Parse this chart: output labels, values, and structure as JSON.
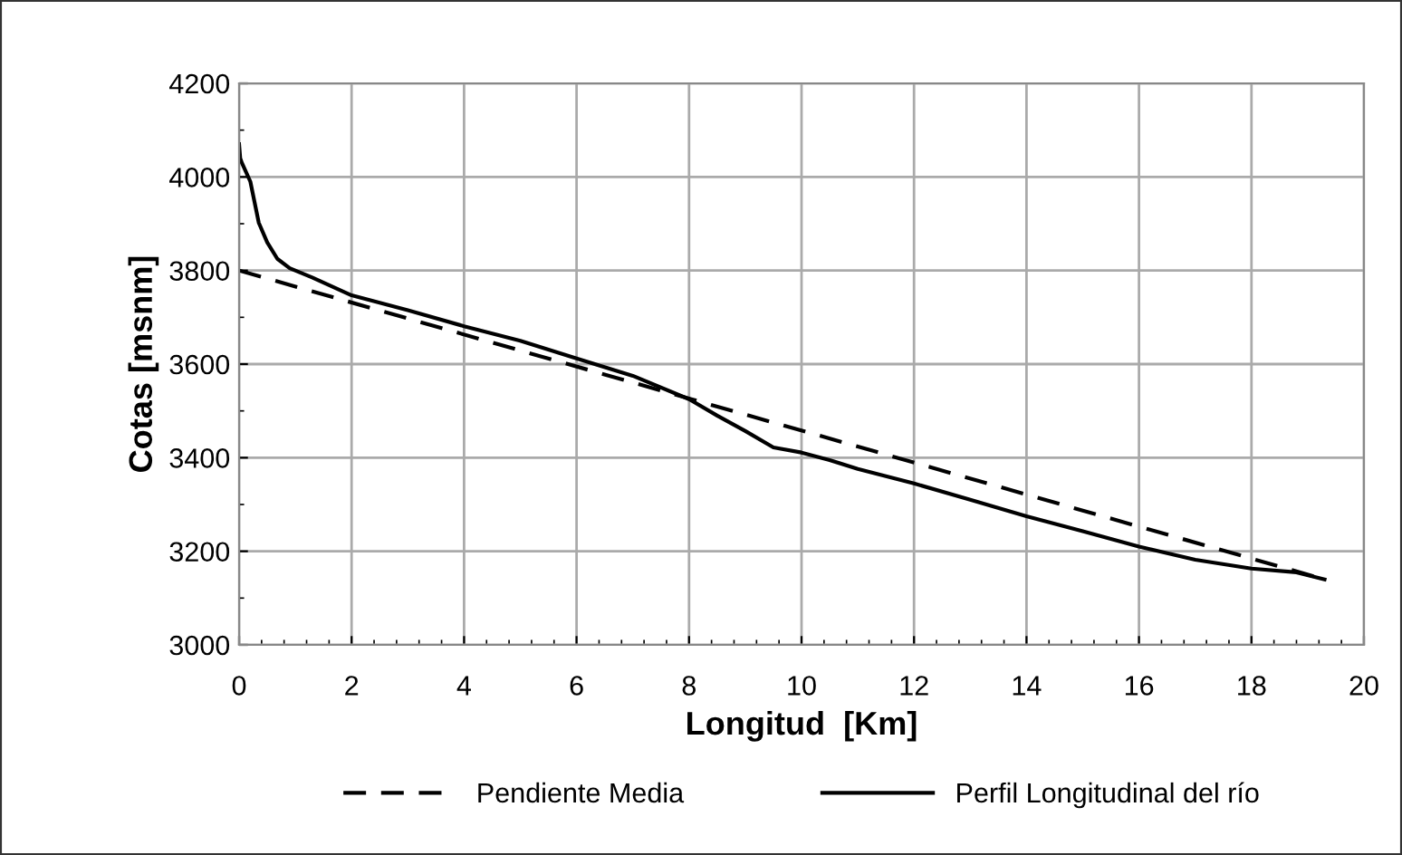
{
  "chart_data": {
    "type": "line",
    "xlabel": "Longitud  [Km]",
    "ylabel": "Cotas [msnm]",
    "xlim": [
      0,
      20
    ],
    "xticks": [
      0,
      2,
      4,
      6,
      8,
      10,
      12,
      14,
      16,
      18,
      20
    ],
    "ylim": [
      3000,
      4200
    ],
    "yticks": [
      3000,
      3200,
      3400,
      3600,
      3800,
      4000,
      4200
    ],
    "grid": true,
    "legend": "bottom",
    "marker": "none",
    "series": [
      {
        "name": "Pendiente Media",
        "color": "#000000",
        "line_style": "dashed",
        "x": [
          0,
          19.3
        ],
        "values": [
          3800,
          3140
        ]
      },
      {
        "name": "Perfil Longitudinal del río",
        "color": "#000000",
        "line_style": "solid",
        "x": [
          0,
          0.02,
          0.05,
          0.2,
          0.35,
          0.5,
          0.68,
          0.9,
          1.3,
          2,
          3,
          4,
          5,
          6,
          7,
          8,
          8.5,
          9,
          9.5,
          10,
          10.5,
          11,
          12,
          13,
          14,
          15,
          16,
          17,
          18,
          18.8,
          19.3
        ],
        "values": [
          4070,
          4040,
          4030,
          3990,
          3902,
          3860,
          3825,
          3805,
          3785,
          3747,
          3715,
          3681,
          3650,
          3612,
          3575,
          3525,
          3490,
          3457,
          3422,
          3411,
          3395,
          3376,
          3345,
          3310,
          3275,
          3243,
          3210,
          3182,
          3163,
          3155,
          3140
        ]
      }
    ]
  }
}
